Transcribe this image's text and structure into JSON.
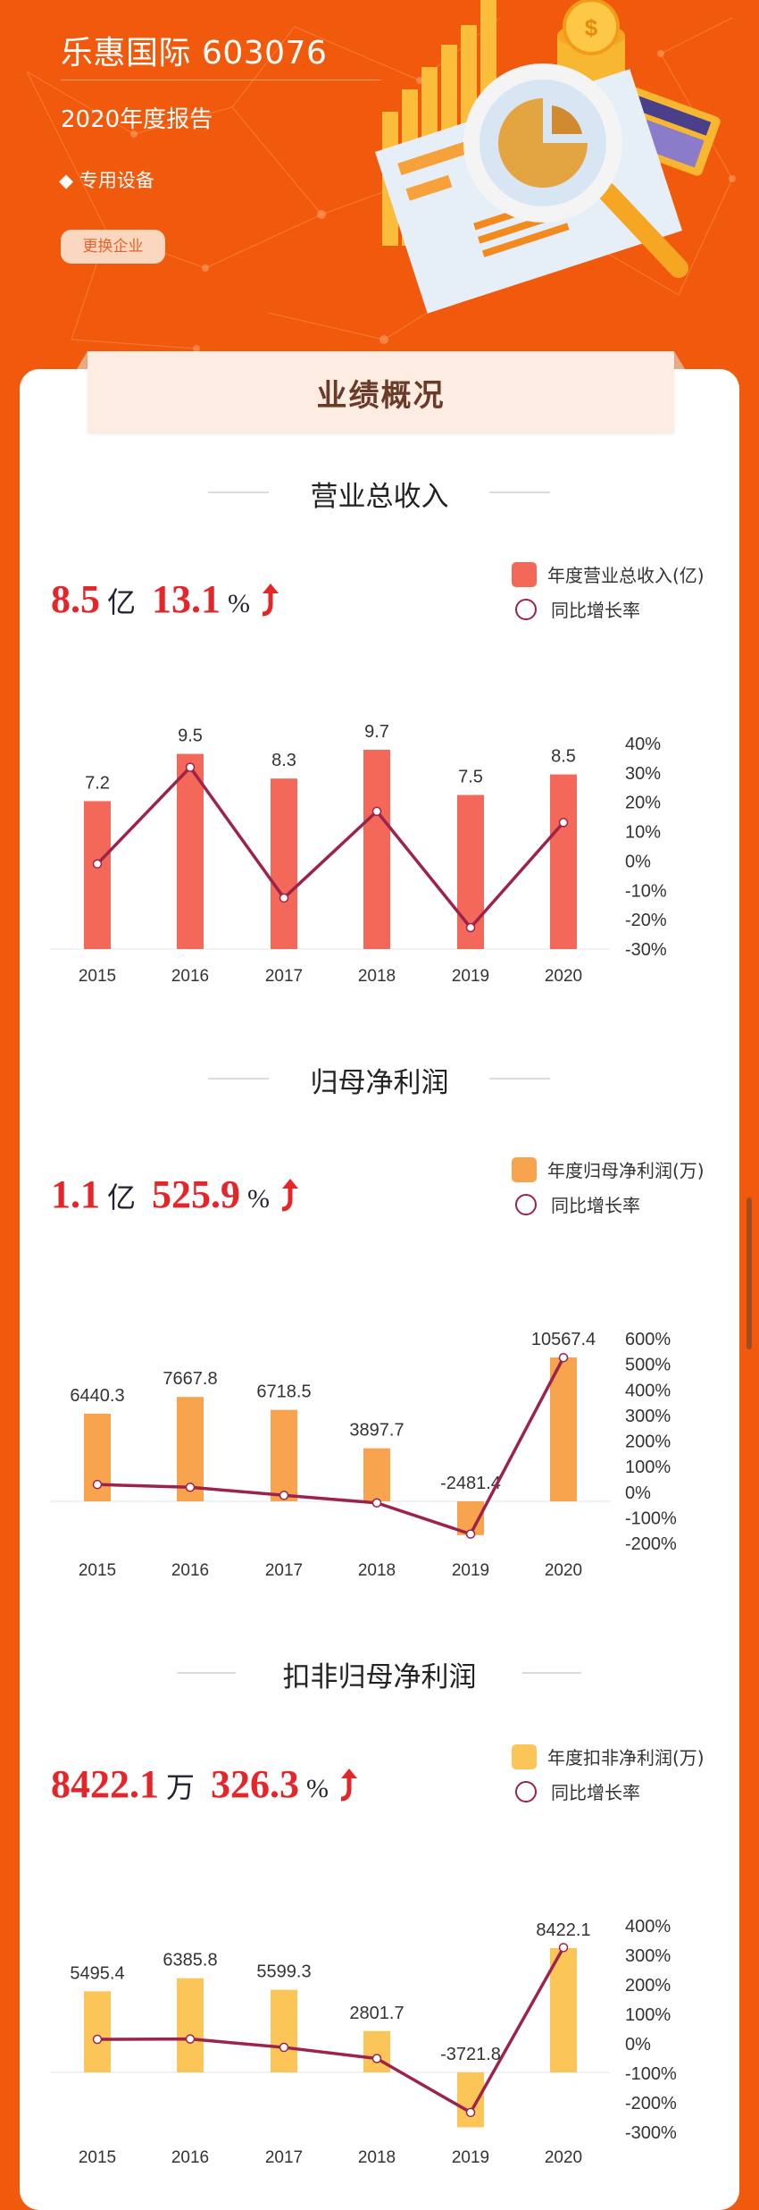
{
  "header": {
    "company": "乐惠国际 603076",
    "report": "2020年度报告",
    "industry_bullet": "◆",
    "industry": "专用设备",
    "change_button": "更换企业"
  },
  "section_banner": "业绩概况",
  "colors": {
    "bg": "#f15a0c",
    "line": "#9c2349",
    "revenue": "#f4685a",
    "net_profit": "#f8a34e",
    "deducted": "#fcc557",
    "highlight": "#e4262a"
  },
  "sections": [
    {
      "title": "营业总收入",
      "value": "8.5",
      "unit": "亿",
      "growth": "13.1",
      "pct": "%",
      "trend": "up",
      "legend_bar": "年度营业总收入(亿)",
      "legend_line": "同比增长率"
    },
    {
      "title": "归母净利润",
      "value": "1.1",
      "unit": "亿",
      "growth": "525.9",
      "pct": "%",
      "trend": "up",
      "legend_bar": "年度归母净利润(万)",
      "legend_line": "同比增长率"
    },
    {
      "title": "扣非归母净利润",
      "value": "8422.1",
      "unit": "万",
      "growth": "326.3",
      "pct": "%",
      "trend": "up",
      "legend_bar": "年度扣非净利润(万)",
      "legend_line": "同比增长率"
    }
  ],
  "chart_data": [
    {
      "type": "bar+line",
      "title": "营业总收入",
      "categories": [
        "2015",
        "2016",
        "2017",
        "2018",
        "2019",
        "2020"
      ],
      "series": [
        {
          "name": "年度营业总收入(亿)",
          "type": "bar",
          "axis": "left",
          "values": [
            7.2,
            9.5,
            8.3,
            9.7,
            7.5,
            8.5
          ],
          "labels": [
            "7.2",
            "9.5",
            "8.3",
            "9.7",
            "7.5",
            "8.5"
          ]
        },
        {
          "name": "同比增长率",
          "type": "line",
          "axis": "right",
          "unit": "%",
          "values": [
            -1,
            31.9,
            -12.6,
            16.9,
            -22.7,
            13.1
          ]
        }
      ],
      "y2_ticks": [
        40,
        30,
        20,
        10,
        0,
        -10,
        -20,
        -30
      ],
      "y2_tick_labels": [
        "40%",
        "30%",
        "20%",
        "10%",
        "0%",
        "-10%",
        "-20%",
        "-30%"
      ],
      "y2lim": [
        -30,
        40
      ],
      "grid": false,
      "legend": "top-right"
    },
    {
      "type": "bar+line",
      "title": "归母净利润",
      "categories": [
        "2015",
        "2016",
        "2017",
        "2018",
        "2019",
        "2020"
      ],
      "series": [
        {
          "name": "年度归母净利润(万)",
          "type": "bar",
          "axis": "left",
          "values": [
            6440.3,
            7667.8,
            6718.5,
            3897.7,
            -2481.4,
            10567.4
          ],
          "labels": [
            "6440.3",
            "7667.8",
            "6718.5",
            "3897.7",
            "-2481.4",
            "10567.4"
          ]
        },
        {
          "name": "同比增长率",
          "type": "line",
          "axis": "right",
          "unit": "%",
          "values": [
            30,
            19.1,
            -12.4,
            -42,
            -163.7,
            525.9
          ]
        }
      ],
      "y2_ticks": [
        600,
        500,
        400,
        300,
        200,
        100,
        0,
        -100,
        -200
      ],
      "y2_tick_labels": [
        "600%",
        "500%",
        "400%",
        "300%",
        "200%",
        "100%",
        "0%",
        "-100%",
        "-200%"
      ],
      "y2lim": [
        -200,
        600
      ],
      "grid": false,
      "legend": "top-right"
    },
    {
      "type": "bar+line",
      "title": "扣非归母净利润",
      "categories": [
        "2015",
        "2016",
        "2017",
        "2018",
        "2019",
        "2020"
      ],
      "series": [
        {
          "name": "年度扣非净利润(万)",
          "type": "bar",
          "axis": "left",
          "values": [
            5495.4,
            6385.8,
            5599.3,
            2801.7,
            -3721.8,
            8422.1
          ],
          "labels": [
            "5495.4",
            "6385.8",
            "5599.3",
            "2801.7",
            "-3721.8",
            "8422.1"
          ]
        },
        {
          "name": "同比增长率",
          "type": "line",
          "axis": "right",
          "unit": "%",
          "values": [
            15,
            16.2,
            -12.3,
            -50,
            -232.8,
            326.3
          ]
        }
      ],
      "y2_ticks": [
        400,
        300,
        200,
        100,
        0,
        -100,
        -200,
        -300
      ],
      "y2_tick_labels": [
        "400%",
        "300%",
        "200%",
        "100%",
        "0%",
        "-100%",
        "-200%",
        "-300%"
      ],
      "y2lim": [
        -300,
        400
      ],
      "grid": false,
      "legend": "top-right"
    }
  ]
}
